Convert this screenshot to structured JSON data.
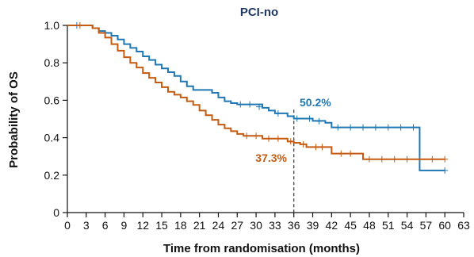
{
  "chart_data": {
    "type": "line",
    "title": "PCI-no",
    "xlabel": "Time from randomisation (months)",
    "ylabel": "Probability of OS",
    "xlim": [
      0,
      63
    ],
    "ylim": [
      0,
      1.0
    ],
    "xticks": [
      "0",
      "3",
      "6",
      "9",
      "12",
      "15",
      "18",
      "21",
      "24",
      "27",
      "30",
      "33",
      "36",
      "39",
      "42",
      "45",
      "48",
      "51",
      "54",
      "57",
      "60",
      "63"
    ],
    "yticks": [
      "0",
      "0.2",
      "0.4",
      "0.6",
      "0.8",
      "1.0"
    ],
    "title_color": "#1f3864",
    "reference_line": {
      "x": 36,
      "style": "dashed"
    },
    "series": [
      {
        "color": "#1f77b4",
        "annotation": "50.2%",
        "points": [
          [
            0,
            1.0
          ],
          [
            3,
            1.0
          ],
          [
            4,
            0.985
          ],
          [
            5,
            0.97
          ],
          [
            6,
            0.96
          ],
          [
            7,
            0.945
          ],
          [
            8,
            0.925
          ],
          [
            9,
            0.9
          ],
          [
            10,
            0.88
          ],
          [
            11,
            0.86
          ],
          [
            12,
            0.835
          ],
          [
            13,
            0.815
          ],
          [
            14,
            0.79
          ],
          [
            15,
            0.77
          ],
          [
            16,
            0.75
          ],
          [
            17,
            0.73
          ],
          [
            18,
            0.7
          ],
          [
            19,
            0.675
          ],
          [
            20,
            0.655
          ],
          [
            22,
            0.655
          ],
          [
            23,
            0.64
          ],
          [
            24,
            0.615
          ],
          [
            25,
            0.595
          ],
          [
            26,
            0.585
          ],
          [
            27,
            0.578
          ],
          [
            30,
            0.578
          ],
          [
            31,
            0.56
          ],
          [
            32,
            0.545
          ],
          [
            33,
            0.53
          ],
          [
            35,
            0.515
          ],
          [
            36,
            0.502
          ],
          [
            38,
            0.502
          ],
          [
            39,
            0.49
          ],
          [
            41,
            0.48
          ],
          [
            42,
            0.455
          ],
          [
            56,
            0.455
          ],
          [
            56,
            0.225
          ],
          [
            60,
            0.225
          ]
        ],
        "censored": [
          [
            1.5,
            1.0
          ],
          [
            27.5,
            0.578
          ],
          [
            29,
            0.578
          ],
          [
            30.5,
            0.565
          ],
          [
            33.5,
            0.53
          ],
          [
            36.5,
            0.502
          ],
          [
            38.5,
            0.502
          ],
          [
            40,
            0.488
          ],
          [
            43,
            0.455
          ],
          [
            45,
            0.455
          ],
          [
            47,
            0.455
          ],
          [
            49,
            0.455
          ],
          [
            51,
            0.455
          ],
          [
            53,
            0.455
          ],
          [
            55,
            0.455
          ],
          [
            60,
            0.225
          ]
        ]
      },
      {
        "color": "#c55a11",
        "annotation": "37.3%",
        "points": [
          [
            0,
            1.0
          ],
          [
            3,
            1.0
          ],
          [
            4,
            0.985
          ],
          [
            5,
            0.96
          ],
          [
            6,
            0.935
          ],
          [
            7,
            0.9
          ],
          [
            8,
            0.865
          ],
          [
            9,
            0.83
          ],
          [
            10,
            0.8
          ],
          [
            11,
            0.775
          ],
          [
            12,
            0.745
          ],
          [
            13,
            0.72
          ],
          [
            14,
            0.695
          ],
          [
            15,
            0.67
          ],
          [
            16,
            0.645
          ],
          [
            17,
            0.63
          ],
          [
            18,
            0.615
          ],
          [
            19,
            0.595
          ],
          [
            20,
            0.575
          ],
          [
            21,
            0.545
          ],
          [
            22,
            0.52
          ],
          [
            23,
            0.495
          ],
          [
            24,
            0.47
          ],
          [
            25,
            0.45
          ],
          [
            26,
            0.435
          ],
          [
            27,
            0.42
          ],
          [
            28,
            0.41
          ],
          [
            30,
            0.41
          ],
          [
            31,
            0.395
          ],
          [
            34,
            0.395
          ],
          [
            35,
            0.38
          ],
          [
            36,
            0.373
          ],
          [
            37,
            0.365
          ],
          [
            38,
            0.35
          ],
          [
            41,
            0.35
          ],
          [
            42,
            0.315
          ],
          [
            46,
            0.315
          ],
          [
            47,
            0.285
          ],
          [
            60,
            0.285
          ]
        ],
        "censored": [
          [
            2,
            1.0
          ],
          [
            28.5,
            0.41
          ],
          [
            30,
            0.41
          ],
          [
            32,
            0.395
          ],
          [
            33.5,
            0.395
          ],
          [
            35.5,
            0.38
          ],
          [
            37.5,
            0.365
          ],
          [
            39.5,
            0.35
          ],
          [
            40.5,
            0.35
          ],
          [
            43.5,
            0.315
          ],
          [
            45,
            0.315
          ],
          [
            48,
            0.285
          ],
          [
            50,
            0.285
          ],
          [
            52,
            0.285
          ],
          [
            54,
            0.285
          ],
          [
            56,
            0.285
          ],
          [
            58,
            0.285
          ],
          [
            60,
            0.285
          ]
        ]
      }
    ]
  }
}
